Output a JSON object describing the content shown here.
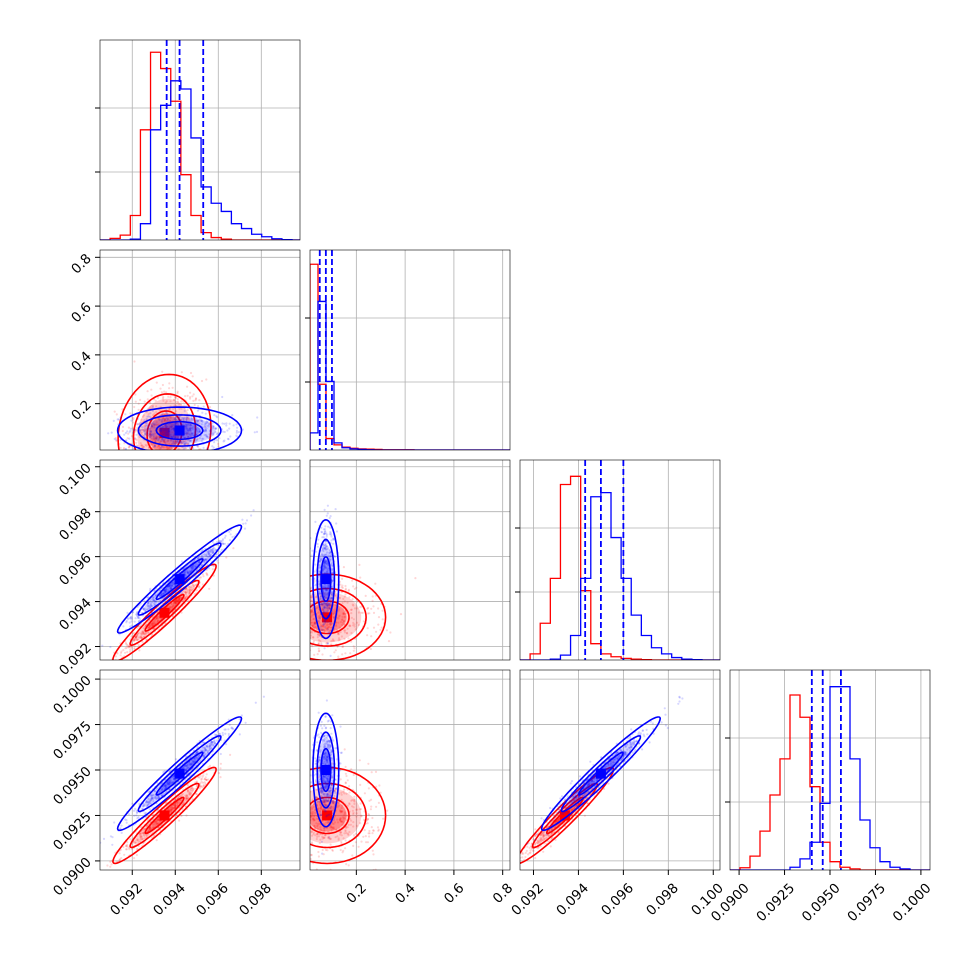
{
  "chart_data": {
    "type": "corner",
    "grid": true,
    "series_colors": {
      "a": "#0000ff",
      "b": "#ff0000"
    },
    "quantile_line_color": "#0000ff",
    "params": [
      {
        "range": [
          0.0905,
          0.0998
        ],
        "ticks": [
          0.092,
          0.094,
          0.096,
          0.098
        ],
        "tick_labels": [
          "0.092",
          "0.094",
          "0.096",
          "0.098"
        ]
      },
      {
        "range": [
          0.01,
          0.83
        ],
        "ticks": [
          0.2,
          0.4,
          0.6,
          0.8
        ],
        "tick_labels": [
          "0.2",
          "0.4",
          "0.6",
          "0.8"
        ]
      },
      {
        "range": [
          0.0914,
          0.1003
        ],
        "ticks": [
          0.092,
          0.094,
          0.096,
          0.098,
          0.1
        ],
        "tick_labels": [
          "0.092",
          "0.094",
          "0.096",
          "0.098",
          "0.100"
        ]
      },
      {
        "range": [
          0.0895,
          0.1005
        ],
        "ticks": [
          0.09,
          0.0925,
          0.095,
          0.0975,
          0.1
        ],
        "tick_labels": [
          "0.0900",
          "0.0925",
          "0.0950",
          "0.0975",
          "0.1000"
        ]
      }
    ],
    "row_ticks": {
      "1": {
        "ticks": [
          0.2,
          0.4,
          0.6,
          0.8
        ],
        "tick_labels": [
          "0.2",
          "0.4",
          "0.6",
          "0.8"
        ]
      },
      "2": {
        "ticks": [
          0.092,
          0.094,
          0.096,
          0.098,
          0.1
        ],
        "tick_labels": [
          "0.092",
          "0.094",
          "0.096",
          "0.098",
          "0.100"
        ]
      },
      "3": {
        "ticks": [
          0.09,
          0.0925,
          0.095,
          0.0975,
          0.1
        ],
        "tick_labels": [
          "0.0900",
          "0.0925",
          "0.0950",
          "0.0975",
          "0.1000"
        ]
      }
    },
    "histograms": [
      {
        "blue": {
          "edges_start": 0.0905,
          "bin_width": 0.00047,
          "counts": [
            0,
            0,
            0,
            2,
            40,
            270,
            330,
            390,
            370,
            250,
            130,
            90,
            70,
            40,
            28,
            14,
            8,
            3,
            1,
            0
          ]
        },
        "red": {
          "edges_start": 0.0905,
          "bin_width": 0.00047,
          "counts": [
            0,
            4,
            12,
            60,
            270,
            460,
            420,
            340,
            160,
            60,
            18,
            6,
            2,
            0,
            0,
            0,
            0,
            0,
            0,
            0
          ]
        },
        "quantiles": [
          0.0936,
          0.0942,
          0.0953
        ],
        "ymax": 490
      },
      {
        "blue": {
          "edges_start": 0.01,
          "bin_width": 0.0328,
          "counts": [
            60,
            520,
            240,
            25,
            8,
            4,
            2,
            1,
            0,
            0,
            0,
            0,
            0,
            0,
            0,
            0,
            0,
            0,
            0,
            0,
            0,
            0,
            0,
            0,
            0
          ]
        },
        "red": {
          "edges_start": 0.01,
          "bin_width": 0.0328,
          "counts": [
            650,
            230,
            40,
            18,
            10,
            6,
            4,
            3,
            2,
            1,
            1,
            1,
            1,
            0,
            0,
            0,
            0,
            0,
            0,
            0,
            0,
            0,
            0,
            0,
            0
          ]
        },
        "quantiles": [
          0.05,
          0.075,
          0.1
        ],
        "ymax": 700
      },
      {
        "blue": {
          "edges_start": 0.0914,
          "bin_width": 0.00045,
          "counts": [
            0,
            0,
            0,
            2,
            12,
            60,
            200,
            400,
            410,
            300,
            200,
            110,
            60,
            30,
            15,
            6,
            2,
            1,
            0,
            0
          ]
        },
        "red": {
          "edges_start": 0.0914,
          "bin_width": 0.00045,
          "counts": [
            0,
            15,
            90,
            200,
            430,
            450,
            170,
            40,
            15,
            8,
            4,
            2,
            1,
            0,
            0,
            0,
            0,
            0,
            0,
            0
          ]
        },
        "quantiles": [
          0.0943,
          0.095,
          0.096
        ],
        "ymax": 490
      },
      {
        "blue": {
          "edges_start": 0.0895,
          "bin_width": 0.00055,
          "counts": [
            0,
            0,
            0,
            0,
            0,
            0,
            5,
            20,
            50,
            120,
            330,
            330,
            200,
            90,
            40,
            15,
            5,
            2,
            0,
            0
          ]
        },
        "red": {
          "edges_start": 0.0895,
          "bin_width": 0.00055,
          "counts": [
            0,
            4,
            25,
            70,
            135,
            200,
            315,
            275,
            150,
            50,
            15,
            5,
            2,
            0,
            0,
            0,
            0,
            0,
            0,
            0
          ]
        },
        "quantiles": [
          0.094,
          0.0946,
          0.0956
        ],
        "ymax": 360
      }
    ],
    "scatter_panels": [
      {
        "row": 1,
        "col": 0,
        "blue": {
          "mean": [
            0.0942,
            0.09
          ],
          "sd": [
            0.0012,
            0.04
          ],
          "rho": 0.0,
          "n": 500
        },
        "red": {
          "mean": [
            0.0935,
            0.08
          ],
          "sd": [
            0.0009,
            0.1
          ],
          "rho": 0.1,
          "n": 500
        }
      },
      {
        "row": 2,
        "col": 0,
        "blue": {
          "mean": [
            0.0942,
            0.095
          ],
          "sd": [
            0.0012,
            0.001
          ],
          "rho": 0.97,
          "n": 600
        },
        "red": {
          "mean": [
            0.0935,
            0.0935
          ],
          "sd": [
            0.001,
            0.0009
          ],
          "rho": 0.96,
          "n": 600
        }
      },
      {
        "row": 2,
        "col": 1,
        "blue": {
          "mean": [
            0.075,
            0.095
          ],
          "sd": [
            0.022,
            0.0011
          ],
          "rho": 0.0,
          "n": 500
        },
        "red": {
          "mean": [
            0.08,
            0.0933
          ],
          "sd": [
            0.1,
            0.0008
          ],
          "rho": 0.0,
          "n": 500
        }
      },
      {
        "row": 3,
        "col": 0,
        "blue": {
          "mean": [
            0.0942,
            0.0948
          ],
          "sd": [
            0.0012,
            0.0013
          ],
          "rho": 0.97,
          "n": 600
        },
        "red": {
          "mean": [
            0.0935,
            0.0925
          ],
          "sd": [
            0.001,
            0.0011
          ],
          "rho": 0.96,
          "n": 600
        }
      },
      {
        "row": 3,
        "col": 1,
        "blue": {
          "mean": [
            0.075,
            0.095
          ],
          "sd": [
            0.022,
            0.0013
          ],
          "rho": 0.0,
          "n": 500
        },
        "red": {
          "mean": [
            0.08,
            0.0925
          ],
          "sd": [
            0.1,
            0.0011
          ],
          "rho": 0.0,
          "n": 500
        }
      },
      {
        "row": 3,
        "col": 2,
        "blue": {
          "mean": [
            0.095,
            0.0948
          ],
          "sd": [
            0.0011,
            0.0013
          ],
          "rho": 0.97,
          "n": 600
        },
        "red": {
          "mean": [
            0.0934,
            0.0925
          ],
          "sd": [
            0.0009,
            0.0011
          ],
          "rho": 0.96,
          "n": 600
        }
      }
    ]
  }
}
